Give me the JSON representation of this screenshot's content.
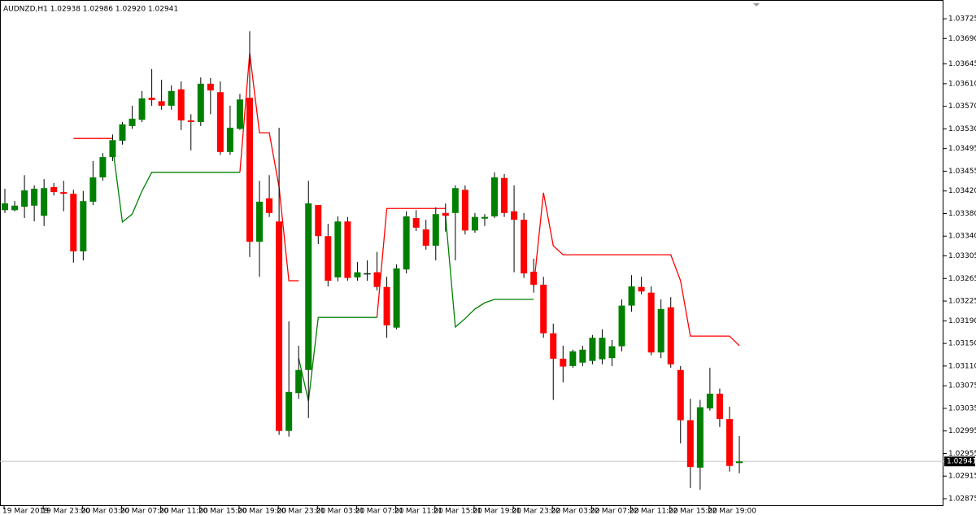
{
  "chart_data": {
    "type": "candlestick",
    "title": "AUDNZD,H1  1.02938 1.02986 1.02920 1.02941",
    "categories": [
      "19 Mar 2019",
      null,
      null,
      null,
      "19 Mar 23:00",
      null,
      null,
      null,
      "20 Mar 03:00",
      null,
      null,
      null,
      "20 Mar 07:00",
      null,
      null,
      null,
      "20 Mar 11:00",
      null,
      null,
      null,
      "20 Mar 15:00",
      null,
      null,
      null,
      "20 Mar 19:00",
      null,
      null,
      null,
      "20 Mar 23:00",
      null,
      null,
      null,
      "21 Mar 03:00",
      null,
      null,
      null,
      "21 Mar 07:00",
      null,
      null,
      null,
      "21 Mar 11:00",
      null,
      null,
      null,
      "21 Mar 15:00",
      null,
      null,
      null,
      "21 Mar 19:00",
      null,
      null,
      null,
      "21 Mar 23:00",
      null,
      null,
      null,
      "22 Mar 03:00",
      null,
      null,
      null,
      "22 Mar 07:00",
      null,
      null,
      null,
      "22 Mar 11:00",
      null,
      null,
      null,
      "22 Mar 15:00",
      null,
      null,
      null,
      "22 Mar 19:00",
      null,
      null,
      null
    ],
    "open": [
      1.03386,
      1.03386,
      1.03392,
      1.03394,
      1.03376,
      1.03427,
      1.03418,
      1.03415,
      1.03313,
      1.03401,
      1.03444,
      1.0348,
      1.03509,
      1.03535,
      1.03546,
      1.03585,
      1.03579,
      1.03571,
      1.036,
      1.03545,
      1.03542,
      1.0361,
      1.03595,
      1.03489,
      1.0353,
      1.03585,
      1.0333,
      1.03407,
      1.03366,
      1.02995,
      1.03062,
      1.03103,
      1.03395,
      1.0334,
      1.03267,
      1.03366,
      1.03267,
      1.03273,
      1.03276,
      1.0325,
      1.03178,
      1.03281,
      1.03372,
      1.03352,
      1.03323,
      1.03381,
      1.03381,
      1.03422,
      1.0335,
      1.03371,
      1.03375,
      1.03443,
      1.03384,
      1.03369,
      1.03277,
      1.03254,
      1.03168,
      1.03123,
      1.0311,
      1.03116,
      1.03119,
      1.03122,
      1.03124,
      1.03145,
      1.03217,
      1.0325,
      1.0324,
      1.03134,
      1.03214,
      1.03103,
      1.03014,
      1.0293,
      1.03035,
      1.03061,
      1.03016,
      1.02938
    ],
    "high": [
      1.03424,
      1.03402,
      1.03448,
      1.0343,
      1.03441,
      1.03434,
      1.03438,
      1.03422,
      1.0342,
      1.03473,
      1.03487,
      1.0352,
      1.03542,
      1.03571,
      1.03597,
      1.03636,
      1.03617,
      1.03607,
      1.03614,
      1.03556,
      1.03621,
      1.0362,
      1.03614,
      1.03571,
      1.03592,
      1.03703,
      1.03438,
      1.03448,
      1.03532,
      1.03189,
      1.03146,
      1.03438,
      1.03395,
      1.03362,
      1.03375,
      1.03374,
      1.03294,
      1.03297,
      1.03312,
      1.03268,
      1.0329,
      1.03384,
      1.03386,
      1.03369,
      1.03391,
      1.03398,
      1.0343,
      1.0343,
      1.03381,
      1.03379,
      1.03453,
      1.0345,
      1.0343,
      1.03381,
      1.033,
      1.03268,
      1.03185,
      1.03146,
      1.03139,
      1.03146,
      1.03165,
      1.03175,
      1.03156,
      1.03228,
      1.03271,
      1.03268,
      1.03251,
      1.03228,
      1.03232,
      1.0311,
      1.03052,
      1.0305,
      1.03107,
      1.0307,
      1.03038,
      1.02986
    ],
    "low": [
      1.03381,
      1.03384,
      1.03372,
      1.03366,
      1.03358,
      1.03412,
      1.03384,
      1.03293,
      1.03297,
      1.03395,
      1.03438,
      1.03473,
      1.03502,
      1.0353,
      1.03542,
      1.03571,
      1.03564,
      1.03564,
      1.03528,
      1.03492,
      1.03535,
      1.03556,
      1.03484,
      1.03484,
      1.03528,
      1.03303,
      1.03268,
      1.03374,
      1.02988,
      1.02985,
      1.03052,
      1.03018,
      1.03326,
      1.03251,
      1.0326,
      1.03261,
      1.03261,
      1.03261,
      1.03244,
      1.0316,
      1.03175,
      1.03274,
      1.03349,
      1.03316,
      1.03297,
      1.03348,
      1.03297,
      1.03343,
      1.03346,
      1.03358,
      1.03372,
      1.03374,
      1.03276,
      1.03266,
      1.0324,
      1.0316,
      1.0305,
      1.03081,
      1.03107,
      1.0311,
      1.03113,
      1.03113,
      1.0311,
      1.03136,
      1.03206,
      1.03237,
      1.03129,
      1.03124,
      1.03107,
      1.02973,
      1.02894,
      1.02891,
      1.03031,
      1.03002,
      1.02923,
      1.0292
    ],
    "close": [
      1.03398,
      1.03394,
      1.03421,
      1.03424,
      1.03425,
      1.03418,
      1.03415,
      1.03313,
      1.03402,
      1.03444,
      1.0348,
      1.0351,
      1.03538,
      1.03548,
      1.03584,
      1.03581,
      1.03571,
      1.03597,
      1.03545,
      1.03542,
      1.0361,
      1.03598,
      1.03489,
      1.03532,
      1.03582,
      1.0333,
      1.03401,
      1.03381,
      1.02995,
      1.03064,
      1.03103,
      1.03398,
      1.0334,
      1.03261,
      1.03366,
      1.03266,
      1.03276,
      1.03274,
      1.0325,
      1.03182,
      1.03283,
      1.03375,
      1.03355,
      1.03323,
      1.03379,
      1.03376,
      1.03425,
      1.0335,
      1.03374,
      1.03374,
      1.03444,
      1.03381,
      1.03369,
      1.03274,
      1.03254,
      1.03168,
      1.03123,
      1.03109,
      1.03136,
      1.03139,
      1.0316,
      1.0316,
      1.03145,
      1.03217,
      1.03251,
      1.03242,
      1.03134,
      1.03211,
      1.03113,
      1.03014,
      1.02931,
      1.03037,
      1.03061,
      1.03016,
      1.02933,
      1.02941
    ],
    "up_color": "#008000",
    "down_color": "#ff0000",
    "lines": [
      {
        "color": "#ff0000",
        "values": [
          null,
          null,
          null,
          null,
          null,
          null,
          null,
          1.03513,
          1.03513,
          1.03513,
          1.03513,
          1.03513,
          null,
          null,
          null,
          null,
          null,
          null,
          null,
          null,
          null,
          null,
          null,
          null,
          1.03453,
          1.03664,
          1.03523,
          1.03523,
          1.03427,
          1.03261,
          1.03261,
          null,
          null,
          null,
          null,
          null,
          null,
          null,
          1.03196,
          1.03389,
          1.03389,
          1.03389,
          1.03389,
          1.03389,
          1.03389,
          1.03389,
          null,
          null,
          null,
          null,
          null,
          null,
          null,
          null,
          1.03251,
          1.03417,
          1.03323,
          1.03307,
          1.03307,
          1.03307,
          1.03307,
          1.03307,
          1.03307,
          1.03307,
          1.03307,
          1.03307,
          1.03307,
          1.03307,
          1.03307,
          1.03261,
          1.03163,
          1.03163,
          1.03163,
          1.03163,
          1.03163,
          1.03146
        ]
      },
      {
        "color": "#008000",
        "values": [
          null,
          null,
          null,
          null,
          null,
          null,
          null,
          null,
          null,
          null,
          null,
          1.03499,
          1.03365,
          1.03379,
          1.0342,
          1.03453,
          1.03453,
          1.03453,
          1.03453,
          1.03453,
          1.03453,
          1.03453,
          1.03453,
          1.03453,
          1.03453,
          null,
          null,
          null,
          null,
          null,
          1.03124,
          1.03048,
          1.03196,
          1.03196,
          1.03196,
          1.03196,
          1.03196,
          1.03196,
          1.03196,
          null,
          null,
          null,
          null,
          null,
          null,
          1.03376,
          1.03179,
          1.03194,
          1.03211,
          1.03222,
          1.03228,
          1.03228,
          1.03228,
          1.03228,
          1.03228,
          null,
          null,
          null,
          null,
          null,
          null,
          null,
          null,
          null,
          null,
          null,
          null,
          null,
          null,
          null,
          null,
          null,
          null,
          null,
          null,
          null
        ]
      }
    ],
    "current_price": 1.02941,
    "ylim": [
      1.02862,
      1.03751
    ],
    "yticks": [
      1.03725,
      {
        "value": 1.0369,
        "label": "1.03690"
      },
      1.03645,
      {
        "value": 1.0361,
        "label": "1.03610"
      },
      {
        "value": 1.0357,
        "label": "1.03570"
      },
      {
        "value": 1.0353,
        "label": "1.03530"
      },
      1.03495,
      1.03455,
      {
        "value": 1.0342,
        "label": "1.03420"
      },
      {
        "value": 1.0338,
        "label": "1.03380"
      },
      {
        "value": 1.0334,
        "label": "1.03340"
      },
      1.03305,
      1.03265,
      1.03225,
      {
        "value": 1.0319,
        "label": "1.03190"
      },
      {
        "value": 1.0315,
        "label": "1.03150"
      },
      {
        "value": 1.0311,
        "label": "1.03110"
      },
      1.03075,
      1.03035,
      1.02995,
      1.02955,
      1.02915,
      1.02875
    ]
  }
}
